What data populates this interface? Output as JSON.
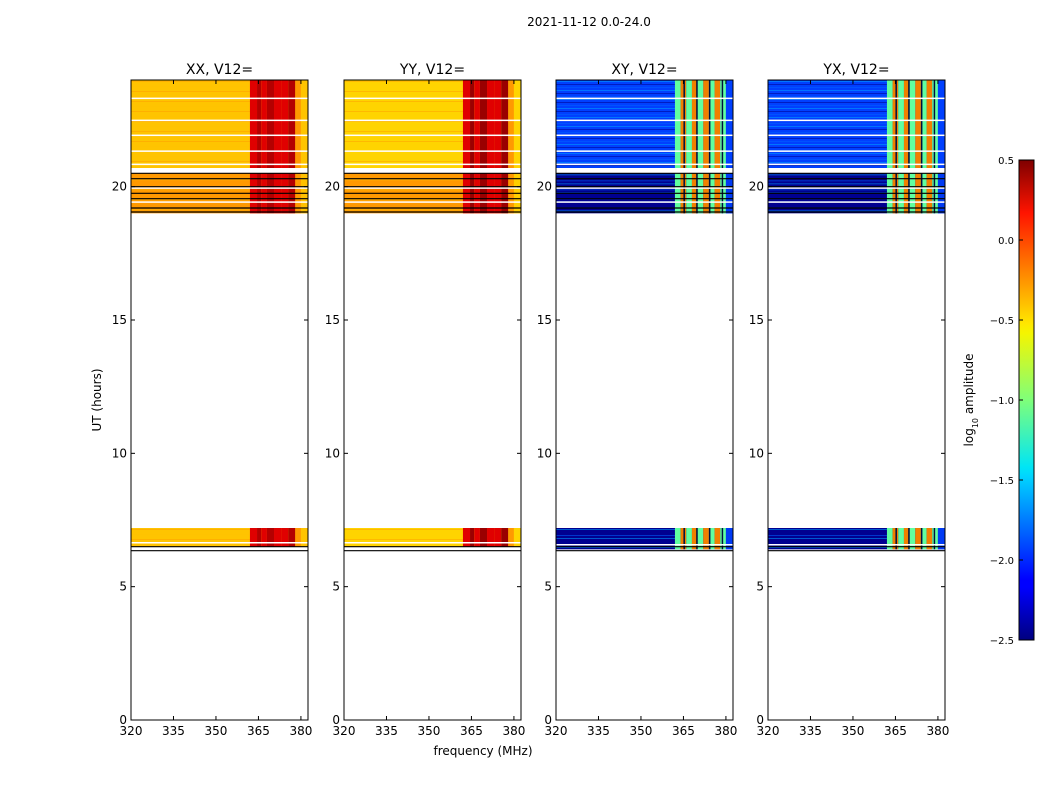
{
  "chart_data": {
    "type": "heatmap",
    "suptitle": "2021-11-12 0.0-24.0",
    "xlabel": "frequency (MHz)",
    "ylabel": "UT (hours)",
    "xlim": [
      320,
      382.5
    ],
    "ylim": [
      0,
      24
    ],
    "xticks": [
      320,
      335,
      350,
      365,
      380
    ],
    "yticks": [
      0,
      5,
      10,
      15,
      20
    ],
    "panels": [
      {
        "title": "XX, V12=",
        "colors": {
          "low": "#ffc400",
          "mid": "#ff9900",
          "band": "#e00000",
          "high": "#b40000"
        },
        "bands": [
          {
            "y0": 20.7,
            "y1": 24.0,
            "level": "low"
          },
          {
            "y0": 19.0,
            "y1": 20.5,
            "level": "mid"
          },
          {
            "y0": 6.5,
            "y1": 7.2,
            "level": "low"
          }
        ]
      },
      {
        "title": "YY, V12=",
        "colors": {
          "low": "#ffd400",
          "mid": "#ff9900",
          "band": "#e00000",
          "high": "#9a0000"
        },
        "bands": [
          {
            "y0": 20.7,
            "y1": 24.0,
            "level": "low"
          },
          {
            "y0": 19.0,
            "y1": 20.5,
            "level": "mid"
          },
          {
            "y0": 6.5,
            "y1": 7.2,
            "level": "low"
          }
        ]
      },
      {
        "title": "XY, V12=",
        "colors": {
          "low": "#0040ff",
          "mid": "#000090",
          "band": "#f08000",
          "high": "#60ffa0"
        },
        "bands": [
          {
            "y0": 20.7,
            "y1": 24.0,
            "level": "low"
          },
          {
            "y0": 19.0,
            "y1": 20.5,
            "level": "mid"
          },
          {
            "y0": 6.4,
            "y1": 7.2,
            "level": "mid"
          }
        ]
      },
      {
        "title": "YX, V12=",
        "colors": {
          "low": "#0040ff",
          "mid": "#000090",
          "band": "#f08000",
          "high": "#60ffa0"
        },
        "bands": [
          {
            "y0": 20.7,
            "y1": 24.0,
            "level": "low"
          },
          {
            "y0": 19.0,
            "y1": 20.5,
            "level": "mid"
          },
          {
            "y0": 6.4,
            "y1": 7.2,
            "level": "mid"
          }
        ]
      }
    ],
    "colorbar": {
      "label_main": "log",
      "label_sub": "10",
      "label_rest": " amplitude",
      "range": [
        -2.5,
        0.5
      ],
      "ticks": [
        0.5,
        0.0,
        -0.5,
        -1.0,
        -1.5,
        -2.0,
        -2.5
      ],
      "tick_labels": [
        "0.5",
        "0.0",
        "−0.5",
        "−1.0",
        "−1.5",
        "−2.0",
        "−2.5"
      ],
      "colormap": "jet"
    }
  }
}
